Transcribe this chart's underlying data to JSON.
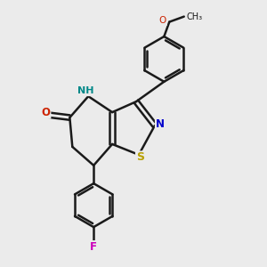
{
  "background_color": "#ebebeb",
  "bond_color": "#1a1a1a",
  "bond_width": 1.8,
  "figsize": [
    3.0,
    3.0
  ],
  "dpi": 100,
  "colors": {
    "S": "#b8a000",
    "N_iso": "#0000cc",
    "NH": "#008888",
    "O": "#cc2200",
    "F": "#cc00bb",
    "C": "#1a1a1a"
  }
}
